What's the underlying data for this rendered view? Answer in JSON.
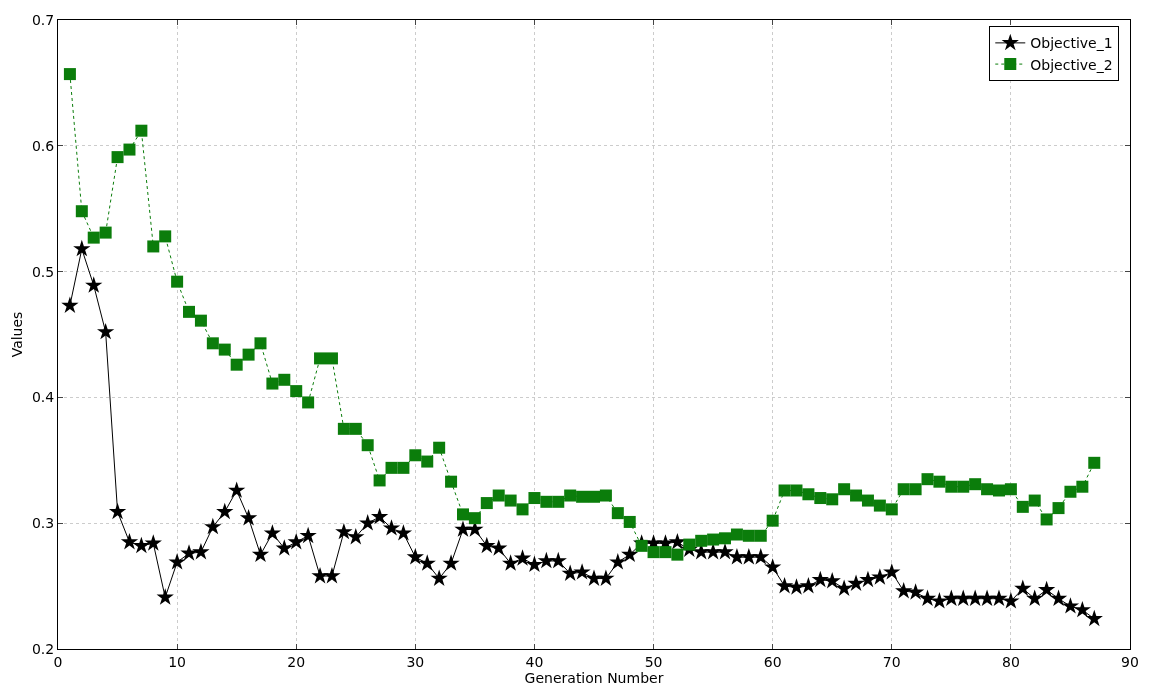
{
  "chart_data": {
    "type": "line",
    "xlabel": "Generation Number",
    "ylabel": "Values",
    "x": [
      1,
      2,
      3,
      4,
      5,
      6,
      7,
      8,
      9,
      10,
      11,
      12,
      13,
      14,
      15,
      16,
      17,
      18,
      19,
      20,
      21,
      22,
      23,
      24,
      25,
      26,
      27,
      28,
      29,
      30,
      31,
      32,
      33,
      34,
      35,
      36,
      37,
      38,
      39,
      40,
      41,
      42,
      43,
      44,
      45,
      46,
      47,
      48,
      49,
      50,
      51,
      52,
      53,
      54,
      55,
      56,
      57,
      58,
      59,
      60,
      61,
      62,
      63,
      64,
      65,
      66,
      67,
      68,
      69,
      70,
      71,
      72,
      73,
      74,
      75,
      76,
      77,
      78,
      79,
      80,
      81,
      82,
      83,
      84,
      85,
      86,
      87
    ],
    "series": [
      {
        "name": "Objective_1",
        "color": "#000000",
        "marker": "star",
        "line_style": "solid",
        "values": [
          0.473,
          0.518,
          0.489,
          0.452,
          0.309,
          0.285,
          0.282,
          0.284,
          0.241,
          0.269,
          0.276,
          0.277,
          0.297,
          0.309,
          0.326,
          0.304,
          0.275,
          0.292,
          0.28,
          0.285,
          0.29,
          0.258,
          0.258,
          0.293,
          0.289,
          0.3,
          0.305,
          0.296,
          0.292,
          0.273,
          0.268,
          0.256,
          0.268,
          0.295,
          0.295,
          0.282,
          0.28,
          0.268,
          0.272,
          0.267,
          0.27,
          0.27,
          0.26,
          0.261,
          0.256,
          0.256,
          0.269,
          0.275,
          0.284,
          0.284,
          0.284,
          0.285,
          0.279,
          0.277,
          0.277,
          0.277,
          0.273,
          0.273,
          0.273,
          0.265,
          0.25,
          0.249,
          0.25,
          0.255,
          0.254,
          0.248,
          0.252,
          0.255,
          0.257,
          0.261,
          0.246,
          0.245,
          0.24,
          0.238,
          0.24,
          0.24,
          0.24,
          0.24,
          0.24,
          0.238,
          0.248,
          0.24,
          0.247,
          0.24,
          0.234,
          0.231,
          0.224
        ]
      },
      {
        "name": "Objective_2",
        "color": "#0b7d0b",
        "marker": "square",
        "line_style": "dotted",
        "values": [
          0.657,
          0.548,
          0.527,
          0.531,
          0.591,
          0.597,
          0.612,
          0.52,
          0.528,
          0.492,
          0.468,
          0.461,
          0.443,
          0.438,
          0.426,
          0.434,
          0.443,
          0.411,
          0.414,
          0.405,
          0.396,
          0.431,
          0.431,
          0.375,
          0.375,
          0.362,
          0.334,
          0.344,
          0.344,
          0.354,
          0.349,
          0.36,
          0.333,
          0.307,
          0.304,
          0.316,
          0.322,
          0.318,
          0.311,
          0.32,
          0.317,
          0.317,
          0.322,
          0.321,
          0.321,
          0.322,
          0.308,
          0.301,
          0.282,
          0.277,
          0.277,
          0.275,
          0.283,
          0.286,
          0.287,
          0.288,
          0.291,
          0.29,
          0.29,
          0.302,
          0.326,
          0.326,
          0.323,
          0.32,
          0.319,
          0.327,
          0.322,
          0.318,
          0.314,
          0.311,
          0.327,
          0.327,
          0.335,
          0.333,
          0.329,
          0.329,
          0.331,
          0.327,
          0.326,
          0.327,
          0.313,
          0.318,
          0.303,
          0.312,
          0.325,
          0.329,
          0.348
        ]
      }
    ],
    "xlim": [
      0,
      90
    ],
    "xticks": [
      0,
      10,
      20,
      30,
      40,
      50,
      60,
      70,
      80,
      90
    ],
    "ylim": [
      0.2,
      0.7
    ],
    "yticks": [
      0.2,
      0.3,
      0.4,
      0.5,
      0.6,
      0.7
    ],
    "grid": true,
    "legend": "top right"
  }
}
